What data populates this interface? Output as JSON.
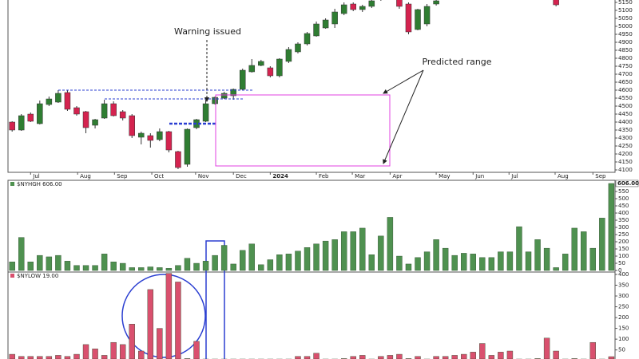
{
  "chart_data": [
    {
      "type": "candlestick",
      "annotations": [
        "Warning issued",
        "Predicted range"
      ],
      "x": [
        0,
        1,
        2,
        3,
        4,
        5,
        6,
        7,
        8,
        9,
        10,
        11,
        12,
        13,
        14,
        15,
        16,
        17,
        18,
        19,
        20,
        21,
        22,
        23,
        24,
        25,
        26,
        27,
        28,
        29,
        30,
        31,
        32,
        33,
        34,
        35,
        36,
        37,
        38,
        39,
        40,
        41,
        42,
        43,
        44,
        45,
        46,
        59
      ],
      "open": [
        4400,
        4350,
        4450,
        4390,
        4510,
        4525,
        4585,
        4490,
        4465,
        4380,
        4425,
        4515,
        4465,
        4440,
        4305,
        4315,
        4290,
        4340,
        4215,
        4135,
        4365,
        4405,
        4515,
        4550,
        4565,
        4605,
        4715,
        4755,
        4740,
        4690,
        4780,
        4840,
        4890,
        4940,
        4990,
        5015,
        5080,
        5140,
        5105,
        5125,
        5170,
        5200,
        5170,
        5140,
        4980,
        5015,
        5140,
        5170
      ],
      "close": [
        4350,
        4440,
        4405,
        4515,
        4545,
        4580,
        4480,
        4450,
        4365,
        4415,
        4515,
        4440,
        4425,
        4315,
        4330,
        4285,
        4340,
        4225,
        4115,
        4355,
        4415,
        4515,
        4555,
        4580,
        4605,
        4725,
        4755,
        4780,
        4690,
        4795,
        4855,
        4890,
        4955,
        5015,
        5040,
        5090,
        5135,
        5105,
        5125,
        5160,
        5200,
        5180,
        5125,
        4965,
        5105,
        5125,
        5160,
        5135
      ],
      "high": [
        4405,
        4450,
        4460,
        4535,
        4560,
        4600,
        4600,
        4500,
        4470,
        4420,
        4540,
        4530,
        4475,
        4450,
        4340,
        4330,
        4360,
        4345,
        4220,
        4360,
        4420,
        4540,
        4560,
        4590,
        4610,
        4735,
        4795,
        4790,
        4750,
        4800,
        4870,
        4900,
        4965,
        5030,
        5050,
        5110,
        5150,
        5150,
        5135,
        5175,
        5210,
        5210,
        5200,
        5150,
        5110,
        5140,
        5180,
        5190
      ],
      "low": [
        4340,
        4345,
        4400,
        4385,
        4500,
        4520,
        4470,
        4440,
        4330,
        4360,
        4420,
        4435,
        4410,
        4300,
        4260,
        4240,
        4280,
        4210,
        4105,
        4120,
        4355,
        4400,
        4510,
        4545,
        4540,
        4600,
        4710,
        4750,
        4680,
        4680,
        4770,
        4830,
        4880,
        4935,
        4985,
        4990,
        5070,
        5095,
        5090,
        5115,
        5160,
        5170,
        5110,
        4950,
        4975,
        5000,
        5130,
        5125
      ],
      "up_color": "#2f7d32",
      "down_color": "#d4234f",
      "xlim": [
        -0.45,
        65.4
      ],
      "xticks": [
        {
          "value": 2,
          "label": "Jul"
        },
        {
          "value": 7.1,
          "label": "Aug"
        },
        {
          "value": 11.1,
          "label": "Sep"
        },
        {
          "value": 15.15,
          "label": "Oct"
        },
        {
          "value": 19.9,
          "label": "Nov"
        },
        {
          "value": 24,
          "label": "Dec"
        },
        {
          "value": 28,
          "label": "2024"
        },
        {
          "value": 33,
          "label": "Feb"
        },
        {
          "value": 36.9,
          "label": "Mar"
        },
        {
          "value": 41,
          "label": "Apr"
        },
        {
          "value": 46,
          "label": "May"
        },
        {
          "value": 50,
          "label": "Jun"
        },
        {
          "value": 53.9,
          "label": "Jul"
        },
        {
          "value": 58.9,
          "label": "Aug"
        },
        {
          "value": 63,
          "label": "Sep"
        }
      ],
      "ylim": [
        4085,
        5165
      ],
      "yticks": [
        4100,
        4150,
        4200,
        4250,
        4300,
        4350,
        4400,
        4450,
        4500,
        4550,
        4600,
        4650,
        4700,
        4750,
        4800,
        4850,
        4900,
        4950,
        5000,
        5050,
        5100,
        5150
      ]
    },
    {
      "type": "bar",
      "title": "$NYHGH 606.00",
      "last_value_label": "606.00",
      "color": "#4f9150",
      "x": [
        0,
        1,
        2,
        3,
        4,
        5,
        6,
        7,
        8,
        9,
        10,
        11,
        12,
        13,
        14,
        15,
        16,
        17,
        18,
        19,
        20,
        21,
        22,
        23,
        24,
        25,
        26,
        27,
        28,
        29,
        30,
        31,
        32,
        33,
        34,
        35,
        36,
        37,
        38,
        39,
        40,
        41,
        42,
        43,
        44,
        45,
        46,
        47,
        48,
        49,
        50,
        51,
        52,
        53,
        54,
        55,
        56,
        57,
        58,
        59,
        60,
        61,
        62,
        63,
        64,
        65
      ],
      "values": [
        60,
        230,
        60,
        105,
        95,
        105,
        65,
        35,
        35,
        35,
        115,
        60,
        50,
        20,
        20,
        25,
        20,
        15,
        35,
        85,
        50,
        65,
        105,
        175,
        45,
        140,
        185,
        40,
        75,
        110,
        115,
        135,
        160,
        185,
        205,
        215,
        270,
        270,
        295,
        110,
        240,
        370,
        100,
        45,
        90,
        130,
        215,
        155,
        105,
        120,
        115,
        90,
        90,
        130,
        130,
        305,
        130,
        215,
        155,
        20,
        115,
        295,
        270,
        155,
        365,
        606
      ],
      "xlim": [
        -0.45,
        65.4
      ],
      "ylim": [
        -11,
        628
      ],
      "yticks": [
        0,
        50,
        100,
        150,
        200,
        250,
        300,
        350,
        400,
        450,
        500,
        550
      ]
    },
    {
      "type": "bar",
      "title": "$NYLOW 19.00",
      "color": "#d9506e",
      "x": [
        0,
        1,
        2,
        3,
        4,
        5,
        6,
        7,
        8,
        9,
        10,
        11,
        12,
        13,
        14,
        15,
        16,
        17,
        18,
        19,
        20,
        21,
        22,
        23,
        24,
        25,
        26,
        27,
        28,
        29,
        30,
        31,
        32,
        33,
        34,
        35,
        36,
        37,
        38,
        39,
        40,
        41,
        42,
        43,
        44,
        45,
        46,
        47,
        48,
        49,
        50,
        51,
        52,
        53,
        54,
        55,
        56,
        57,
        58,
        59,
        60,
        61,
        62,
        63,
        64,
        65
      ],
      "values": [
        30,
        20,
        20,
        20,
        20,
        25,
        20,
        30,
        75,
        55,
        25,
        85,
        75,
        170,
        45,
        330,
        150,
        405,
        365,
        10,
        90,
        5,
        5,
        5,
        5,
        5,
        5,
        5,
        5,
        5,
        5,
        20,
        20,
        35,
        5,
        5,
        10,
        20,
        25,
        5,
        20,
        25,
        30,
        10,
        20,
        5,
        20,
        20,
        25,
        30,
        40,
        80,
        25,
        40,
        45,
        5,
        5,
        10,
        105,
        45,
        5,
        10,
        5,
        85,
        5,
        19
      ],
      "xlim": [
        -0.45,
        65.4
      ],
      "ylim": [
        8,
        411
      ],
      "yticks": [
        50,
        100,
        150,
        200,
        250,
        300,
        350,
        400
      ]
    }
  ]
}
